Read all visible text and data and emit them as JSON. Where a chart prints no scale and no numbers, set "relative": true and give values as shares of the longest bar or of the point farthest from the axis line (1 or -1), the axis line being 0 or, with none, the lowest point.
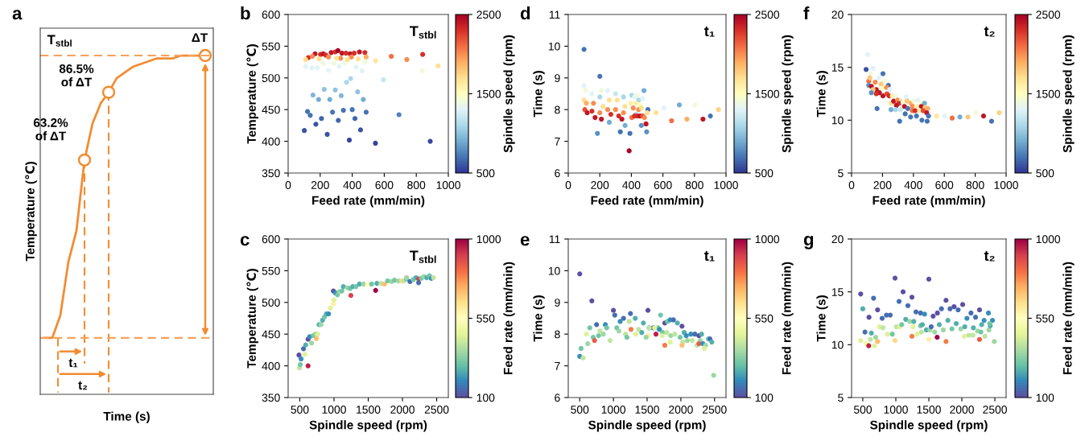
{
  "chart_data": [
    {
      "type": "line",
      "title": "a",
      "xlabel": "Time (s)",
      "ylabel": "Temperature (℃)",
      "relative": true,
      "color": "#f28c33",
      "categories": [
        null,
        null,
        null,
        null,
        null,
        null,
        null,
        null,
        null,
        null,
        null,
        null,
        null,
        null,
        null,
        null,
        null,
        null,
        null,
        null,
        null
      ],
      "values": [
        0,
        0,
        0.08,
        0.27,
        0.38,
        0.63,
        0.76,
        0.83,
        0.87,
        0.92,
        0.94,
        0.96,
        0.97,
        0.98,
        0.99,
        0.99,
        0.99,
        1,
        1,
        1,
        1
      ],
      "ref_lines": [
        {
          "axis": "y",
          "value": 1,
          "label": "T$_{stbl}$",
          "color": "#f5a25e",
          "line_style": "dashed"
        },
        {
          "axis": "y",
          "value": 0,
          "color": "#f5a25e",
          "line_style": "dashed"
        }
      ],
      "annotations": [
        "ΔT",
        "86.5%\nof ΔT",
        "63.2%\nof ΔT",
        "t₁",
        "t₂"
      ]
    },
    {
      "type": "scatter",
      "title": "b",
      "xlabel": "Feed rate (mm/min)",
      "ylabel": "Temperature (℃)",
      "clabel": "Spindle speed (rpm)",
      "annotations": [
        "T$_{stbl}$"
      ],
      "marker": "circle",
      "xlim": [
        0,
        1000
      ],
      "xticks": [
        0,
        200,
        400,
        600,
        800,
        1000
      ],
      "ylim": [
        350,
        600
      ],
      "yticks": [
        350,
        400,
        450,
        500,
        550,
        600
      ],
      "clim": [
        500,
        2500
      ],
      "cticks": [
        500,
        1500,
        2500
      ],
      "x": [
        126,
        168,
        202,
        219,
        235,
        269,
        294,
        311,
        336,
        361,
        387,
        412,
        445,
        479,
        840,
        151,
        252,
        328,
        395,
        487,
        644,
        741,
        109,
        193,
        303,
        370,
        437,
        546,
        936,
        109,
        148,
        182,
        219,
        252,
        286,
        319,
        353,
        424,
        462,
        479,
        837,
        390,
        365,
        595,
        225,
        294,
        155,
        434,
        190,
        260,
        331,
        469,
        121,
        138,
        277,
        345,
        400,
        487,
        692,
        208,
        313,
        417,
        173,
        452,
        101,
        244,
        382,
        545,
        887
      ],
      "values": [
        532,
        538,
        537,
        538,
        536,
        540,
        541,
        543,
        539,
        539,
        538,
        539,
        541,
        540,
        537,
        534,
        533,
        531,
        533,
        533,
        534,
        529,
        529,
        530,
        531,
        529,
        530,
        527,
        519,
        518,
        516,
        516,
        523,
        512,
        523,
        518,
        523,
        517,
        511,
        526,
        511,
        499,
        493,
        497,
        482,
        481,
        473,
        478,
        466,
        466,
        472,
        466,
        447,
        441,
        446,
        449,
        450,
        446,
        442,
        436,
        433,
        436,
        427,
        418,
        417,
        411,
        402,
        397,
        400
      ],
      "cvalues": [
        2300,
        2400,
        2300,
        2400,
        2300,
        2400,
        2300,
        2500,
        2400,
        2300,
        2400,
        2300,
        2400,
        2300,
        2300,
        2000,
        2000,
        2000,
        2000,
        1900,
        2100,
        2000,
        1700,
        1700,
        1700,
        1700,
        1700,
        1650,
        1700,
        1300,
        1300,
        1300,
        1400,
        1300,
        1400,
        1300,
        1400,
        1300,
        1300,
        1400,
        1400,
        1100,
        1100,
        1200,
        1000,
        1000,
        950,
        1000,
        900,
        900,
        950,
        900,
        700,
        700,
        700,
        700,
        700,
        700,
        750,
        650,
        650,
        650,
        600,
        600,
        600,
        600,
        550,
        550,
        550
      ]
    },
    {
      "type": "scatter",
      "title": "c",
      "xlabel": "Spindle speed (rpm)",
      "ylabel": "Temperature (℃)",
      "clabel": "Feed rate (mm/min)",
      "annotations": [
        "T$_{stbl}$"
      ],
      "marker": "circle",
      "xlim": [
        330,
        2670
      ],
      "xticks": [
        500,
        1000,
        1500,
        2000,
        2500
      ],
      "ylim": [
        350,
        600
      ],
      "yticks": [
        350,
        400,
        450,
        500,
        550,
        600
      ],
      "clim": [
        100,
        1000
      ],
      "cticks": [
        100,
        550,
        1000
      ],
      "x": [
        495,
        507,
        621,
        488,
        519,
        574,
        554,
        586,
        621,
        645,
        672,
        700,
        743,
        731,
        763,
        782,
        810,
        833,
        861,
        888,
        920,
        947,
        991,
        998,
        991,
        1022,
        1050,
        1077,
        1116,
        1136,
        1195,
        1234,
        1246,
        1274,
        1321,
        1372,
        1431,
        1490,
        1549,
        1608,
        1627,
        1686,
        1737,
        1784,
        1843,
        1883,
        1942,
        1989,
        2020,
        2060,
        2110,
        2158,
        2197,
        2236,
        2236,
        2276,
        2315,
        2354,
        2394,
        2421,
        2453,
        2060
      ],
      "values": [
        397,
        402,
        400,
        417,
        411,
        418,
        427,
        433,
        442,
        446,
        436,
        448,
        443,
        450,
        450,
        465,
        465,
        472,
        477,
        482,
        482,
        491,
        498,
        504,
        518,
        515,
        512,
        517,
        518,
        525,
        523,
        522,
        511,
        525,
        525,
        529,
        529,
        528,
        529,
        519,
        530,
        530,
        529,
        534,
        533,
        535,
        534,
        534,
        534,
        537,
        533,
        536,
        539,
        537,
        531,
        538,
        541,
        539,
        542,
        538,
        539,
        539
      ],
      "cvalues": [
        400,
        300,
        950,
        100,
        200,
        450,
        150,
        250,
        100,
        200,
        350,
        300,
        700,
        350,
        450,
        250,
        350,
        250,
        300,
        250,
        200,
        450,
        600,
        450,
        100,
        200,
        300,
        350,
        300,
        250,
        350,
        300,
        900,
        250,
        300,
        250,
        350,
        550,
        300,
        1000,
        250,
        400,
        700,
        300,
        350,
        300,
        350,
        650,
        400,
        300,
        150,
        300,
        250,
        900,
        150,
        300,
        350,
        250,
        300,
        200,
        400,
        350
      ]
    },
    {
      "type": "scatter",
      "title": "d",
      "xlabel": "Feed rate (mm/min)",
      "ylabel": "Time (s)",
      "clabel": "Spindle speed (rpm)",
      "annotations": [
        "t₁"
      ],
      "marker": "circle",
      "xlim": [
        0,
        1000
      ],
      "xticks": [
        0,
        200,
        400,
        600,
        800,
        1000
      ],
      "ylim": [
        6,
        11
      ],
      "yticks": [
        6,
        7,
        8,
        9,
        10,
        11
      ],
      "clim": [
        500,
        2500
      ],
      "cticks": [
        500,
        1500,
        2500
      ],
      "x": [
        100,
        100,
        110,
        100,
        115,
        105,
        120,
        150,
        160,
        150,
        170,
        185,
        200,
        210,
        200,
        220,
        200,
        210,
        250,
        260,
        250,
        270,
        260,
        300,
        310,
        300,
        320,
        330,
        350,
        360,
        350,
        340,
        360,
        386,
        480,
        403,
        420,
        437,
        446,
        471,
        395,
        429,
        454,
        412,
        446,
        463,
        505,
        500,
        429,
        403,
        420,
        437,
        454,
        471,
        483,
        463,
        493,
        391,
        497,
        556,
        607,
        704,
        803,
        952,
        655,
        752,
        854,
        901
      ],
      "values": [
        9.9,
        8.75,
        8.6,
        8.3,
        8.2,
        8.0,
        7.9,
        8.5,
        8.2,
        7.95,
        7.75,
        7.25,
        9.05,
        8.6,
        8.4,
        8.1,
        7.9,
        7.7,
        8.6,
        8.3,
        8.0,
        7.85,
        7.6,
        8.5,
        8.3,
        8.0,
        7.8,
        7.3,
        8.4,
        8.1,
        7.9,
        7.7,
        7.5,
        6.7,
        8.6,
        8.45,
        8.4,
        8.45,
        8.3,
        8.35,
        8.2,
        8.2,
        8.15,
        8.05,
        8.0,
        8.05,
        8.0,
        7.9,
        7.85,
        7.75,
        7.8,
        7.8,
        7.8,
        7.8,
        7.75,
        7.5,
        7.55,
        7.25,
        7.3,
        7.9,
        8.05,
        8.15,
        8.15,
        8.0,
        7.65,
        7.7,
        7.7,
        7.8
      ],
      "cvalues": [
        700,
        1300,
        1400,
        1700,
        1900,
        2200,
        2400,
        1300,
        2000,
        2300,
        2400,
        800,
        700,
        1400,
        1100,
        1700,
        2000,
        2400,
        1300,
        1700,
        2000,
        2300,
        900,
        1200,
        1700,
        2000,
        2300,
        700,
        1100,
        1700,
        2000,
        2400,
        900,
        2500,
        900,
        1100,
        1300,
        1400,
        1100,
        1300,
        1600,
        1600,
        1500,
        2000,
        2000,
        1700,
        700,
        1700,
        1100,
        2100,
        2300,
        2300,
        2400,
        2200,
        2000,
        800,
        2400,
        700,
        800,
        1700,
        1300,
        900,
        1400,
        1750,
        2100,
        1900,
        2400,
        700
      ]
    },
    {
      "type": "scatter",
      "title": "e",
      "xlabel": "Spindle speed (rpm)",
      "ylabel": "Time (s)",
      "clabel": "Feed rate (mm/min)",
      "annotations": [
        "t₁"
      ],
      "marker": "circle",
      "xlim": [
        330,
        2670
      ],
      "xticks": [
        500,
        1000,
        1500,
        2000,
        2500
      ],
      "ylim": [
        6,
        11
      ],
      "yticks": [
        6,
        7,
        8,
        9,
        10,
        11
      ],
      "clim": [
        100,
        1000
      ],
      "cticks": [
        100,
        550,
        1000
      ],
      "x": [
        500,
        500,
        520,
        550,
        600,
        620,
        650,
        680,
        700,
        720,
        750,
        780,
        800,
        850,
        880,
        900,
        950,
        1000,
        1020,
        1050,
        1080,
        1100,
        1150,
        1180,
        1200,
        1512,
        1253,
        1699,
        1324,
        1233,
        1762,
        1802,
        1842,
        1890,
        1949,
        2017,
        1444,
        1531,
        1591,
        1659,
        1261,
        1372,
        1531,
        1611,
        1420,
        1332,
        1512,
        1484,
        1631,
        1683,
        1730,
        1790,
        1722,
        1850,
        1910,
        1989,
        2049,
        2080,
        2148,
        2208,
        2268,
        2308,
        1842,
        2029,
        2097,
        2168,
        2288,
        1762,
        2017,
        2240,
        2268,
        2327,
        2367,
        2407,
        2431,
        2459,
        2347,
        2487
      ],
      "values": [
        9.9,
        7.3,
        7.55,
        7.25,
        8.0,
        7.7,
        8.2,
        9.05,
        7.9,
        7.8,
        8.3,
        7.95,
        8.1,
        8.0,
        8.3,
        8.2,
        7.8,
        8.75,
        8.6,
        8.2,
        8.1,
        8.4,
        8.5,
        8.0,
        7.9,
        8.75,
        8.65,
        8.6,
        8.5,
        8.4,
        8.35,
        8.4,
        8.45,
        8.45,
        8.35,
        8.25,
        8.35,
        8.2,
        8.2,
        8.2,
        8.15,
        8.15,
        8.2,
        8.2,
        8.05,
        8.0,
        7.95,
        7.9,
        8.0,
        8.15,
        8.05,
        8.05,
        7.95,
        7.95,
        8.0,
        7.9,
        8.05,
        7.95,
        8.0,
        8.0,
        7.95,
        8.0,
        7.75,
        7.75,
        7.8,
        7.8,
        7.8,
        7.65,
        7.65,
        7.65,
        7.7,
        7.7,
        7.65,
        7.85,
        7.85,
        7.75,
        7.55,
        6.7
      ],
      "cvalues": [
        100,
        200,
        300,
        400,
        450,
        350,
        300,
        100,
        300,
        850,
        150,
        300,
        400,
        350,
        200,
        300,
        400,
        100,
        150,
        300,
        350,
        200,
        150,
        400,
        300,
        100,
        150,
        300,
        250,
        400,
        100,
        300,
        200,
        150,
        250,
        100,
        250,
        200,
        150,
        300,
        800,
        400,
        400,
        450,
        250,
        450,
        600,
        350,
        950,
        200,
        300,
        400,
        450,
        350,
        400,
        300,
        250,
        200,
        200,
        150,
        100,
        250,
        450,
        400,
        350,
        400,
        350,
        800,
        700,
        400,
        850,
        200,
        350,
        300,
        150,
        250,
        450,
        350
      ]
    },
    {
      "type": "scatter",
      "title": "f",
      "xlabel": "Feed rate (mm/min)",
      "ylabel": "Time (s)",
      "clabel": "Spindle speed (rpm)",
      "annotations": [
        "t₂"
      ],
      "marker": "circle",
      "xlim": [
        0,
        1000
      ],
      "xticks": [
        0,
        200,
        400,
        600,
        800,
        1000
      ],
      "ylim": [
        5,
        20
      ],
      "yticks": [
        5,
        10,
        15,
        20
      ],
      "clim": [
        500,
        2500
      ],
      "cticks": [
        500,
        1500,
        2500
      ],
      "x": [
        104,
        94,
        139,
        121,
        203,
        177,
        111,
        212,
        118,
        153,
        111,
        191,
        238,
        128,
        160,
        139,
        194,
        226,
        246,
        128,
        180,
        203,
        229,
        243,
        160,
        264,
        285,
        354,
        255,
        272,
        298,
        319,
        307,
        333,
        359,
        385,
        403,
        429,
        455,
        472,
        290,
        342,
        364,
        394,
        420,
        451,
        475,
        493,
        255,
        285,
        316,
        394,
        411,
        441,
        463,
        486,
        347,
        382,
        420,
        455,
        498,
        489,
        311,
        165,
        550,
        602,
        651,
        701,
        753,
        805,
        854,
        906,
        955
      ],
      "values": [
        16.2,
        14.8,
        14.9,
        14.4,
        14.4,
        14.0,
        13.7,
        13.7,
        14.0,
        13.6,
        13.3,
        13.4,
        13.3,
        13.2,
        12.9,
        12.9,
        13.0,
        13.1,
        12.9,
        12.6,
        12.6,
        12.3,
        12.5,
        12.3,
        12.5,
        12.3,
        12.3,
        12.2,
        11.6,
        11.8,
        11.9,
        11.8,
        11.6,
        11.7,
        11.8,
        11.6,
        11.8,
        11.9,
        11.6,
        11.6,
        11.4,
        11.3,
        11.1,
        11.3,
        11.3,
        11.3,
        11.2,
        11.1,
        11.0,
        11.0,
        11.0,
        10.9,
        10.9,
        10.9,
        10.9,
        10.7,
        10.6,
        10.3,
        10.4,
        10.0,
        10.4,
        9.9,
        9.9,
        11.1,
        10.4,
        10.4,
        10.2,
        10.3,
        10.3,
        10.7,
        10.4,
        9.9,
        10.7
      ],
      "cvalues": [
        1300,
        600,
        1300,
        1400,
        700,
        1300,
        2100,
        1400,
        1800,
        2000,
        800,
        1800,
        700,
        2400,
        2400,
        1800,
        1500,
        2000,
        1300,
        800,
        2400,
        2400,
        2200,
        2300,
        2300,
        1600,
        1400,
        1300,
        1700,
        2400,
        2000,
        1700,
        2300,
        1400,
        1800,
        1900,
        1400,
        1300,
        1500,
        900,
        2400,
        2400,
        700,
        2000,
        1600,
        2400,
        1800,
        1900,
        900,
        1100,
        1200,
        2100,
        2300,
        1600,
        2200,
        2400,
        700,
        700,
        700,
        700,
        700,
        700,
        700,
        700,
        1650,
        1300,
        2100,
        900,
        1800,
        1400,
        2400,
        700,
        1750
      ]
    },
    {
      "type": "scatter",
      "title": "g",
      "xlabel": "Spindle speed (rpm)",
      "ylabel": "Time (s)",
      "clabel": "Feed rate (mm/min)",
      "annotations": [
        "t₂"
      ],
      "marker": "circle",
      "xlim": [
        330,
        2670
      ],
      "xticks": [
        500,
        1000,
        1500,
        2000,
        2500
      ],
      "ylim": [
        5,
        20
      ],
      "yticks": [
        5,
        10,
        15,
        20
      ],
      "clim": [
        100,
        1000
      ],
      "cticks": [
        100,
        550,
        1000
      ],
      "x": [
        468,
        500,
        663,
        724,
        594,
        533,
        630,
        752,
        805,
        793,
        858,
        915,
        695,
        468,
        549,
        590,
        614,
        675,
        724,
        874,
        947,
        988,
        1008,
        1061,
        1049,
        1110,
        1089,
        1183,
        1150,
        1211,
        1244,
        1272,
        1260,
        988,
        1244,
        1305,
        1321,
        1374,
        1374,
        1435,
        1402,
        1386,
        1463,
        1500,
        1500,
        1516,
        1536,
        1565,
        1589,
        1630,
        1626,
        1658,
        1691,
        1719,
        1760,
        1760,
        1788,
        1821,
        1849,
        1882,
        1914,
        1943,
        1983,
        2012,
        2036,
        2044,
        2077,
        2105,
        2138,
        2166,
        2174,
        2207,
        2239,
        2267,
        2267,
        2288,
        2300,
        2337,
        2349,
        2402,
        2410,
        2430,
        2463,
        2491,
        2422
      ],
      "values": [
        14.8,
        13.4,
        14.4,
        13.3,
        12.6,
        11.2,
        11.1,
        11.7,
        11.6,
        12.5,
        12.8,
        12.8,
        10.7,
        10.4,
        10.1,
        9.9,
        10.5,
        9.9,
        10.3,
        11.0,
        11.0,
        16.3,
        11.7,
        11.7,
        14.1,
        15.0,
        11.9,
        13.7,
        12.4,
        12.2,
        14.5,
        12.2,
        11.7,
        10.4,
        10.8,
        13.1,
        11.0,
        13.0,
        11.8,
        12.9,
        11.9,
        11.2,
        11.4,
        16.2,
        10.5,
        11.4,
        11.7,
        12.7,
        11.2,
        13.0,
        10.7,
        11.9,
        13.4,
        11.4,
        14.2,
        10.3,
        12.3,
        13.4,
        11.5,
        13.6,
        12.0,
        13.3,
        11.5,
        13.8,
        10.8,
        11.7,
        12.5,
        10.9,
        13.0,
        10.9,
        11.6,
        12.6,
        11.3,
        13.3,
        10.5,
        11.2,
        11.9,
        12.3,
        10.8,
        13.0,
        11.4,
        11.8,
        12.3,
        10.3,
        12.0
      ],
      "cvalues": [
        100,
        250,
        150,
        100,
        100,
        150,
        250,
        450,
        400,
        150,
        150,
        150,
        350,
        450,
        500,
        950,
        400,
        450,
        700,
        450,
        300,
        100,
        400,
        450,
        150,
        100,
        300,
        150,
        250,
        350,
        100,
        250,
        450,
        650,
        800,
        150,
        450,
        150,
        300,
        200,
        250,
        400,
        250,
        100,
        600,
        350,
        150,
        100,
        350,
        100,
        1000,
        250,
        150,
        350,
        100,
        800,
        250,
        150,
        300,
        100,
        250,
        150,
        350,
        100,
        450,
        250,
        200,
        400,
        150,
        400,
        250,
        150,
        350,
        100,
        850,
        300,
        250,
        200,
        400,
        200,
        350,
        250,
        200,
        350,
        300
      ]
    }
  ]
}
